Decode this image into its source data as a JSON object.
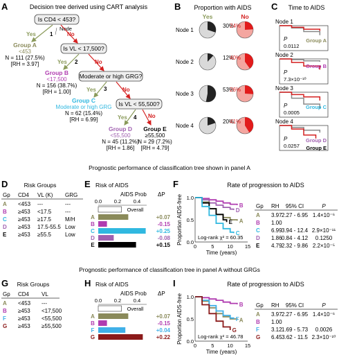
{
  "colors": {
    "groupA": "#8a8a5a",
    "groupB": "#b03cb0",
    "groupC": "#30b8e0",
    "groupD": "#a060b0",
    "groupE": "#000000",
    "groupF": "#40b0e8",
    "groupG": "#8b1a1a",
    "yes": "#8a9a5a",
    "no": "#d42020",
    "pieYes": "#222222",
    "pieYesBg": "#d9d9d9",
    "pieNo": "#e21b1b",
    "pieNoBg": "#f4a6a0"
  },
  "panels": {
    "A": "A",
    "B": "B",
    "C": "C",
    "D": "D",
    "E": "E",
    "F": "F",
    "G": "G",
    "H": "H",
    "I": "I"
  },
  "panelA": {
    "title": "Decision tree derived using CART analysis",
    "q1": "Is CD4 < 453?",
    "node_label": "Node",
    "q2": "Is VL < 17,500?",
    "q3": "Moderate or high GRG?",
    "q4": "Is VL < 55,500?",
    "n1": "1",
    "n2": "2",
    "n3": "3",
    "n4": "4",
    "yes": "Yes",
    "no": "No",
    "groupA": {
      "name": "Group A",
      "crit": "<453",
      "n": "N = 111 (27.5%)",
      "rh": "[RH = 3.97]"
    },
    "groupB": {
      "name": "Group B",
      "crit": "<17,500",
      "n": "N = 156 (38.7%)",
      "rh": "[RH = 1.00]"
    },
    "groupC": {
      "name": "Group C",
      "crit": "Moderate or high GRG",
      "n": "N = 62 (15.4%)",
      "rh": "[RH = 6.99]"
    },
    "groupD": {
      "name": "Group D",
      "crit": "<55,500",
      "n": "N = 45 (11.2%)",
      "rh": "[RH = 1.86]"
    },
    "groupE": {
      "name": "Group E",
      "crit": "≥55,500",
      "n": "N = 29 (7.2%)",
      "rh": "[RH = 4.79]"
    }
  },
  "panelB": {
    "title": "Proportion with AIDS",
    "yes": "Yes",
    "no": "No",
    "rows": [
      {
        "label": "Node 1",
        "yes": "30%",
        "no": "24%",
        "yes_frac": 0.3,
        "no_frac": 0.24
      },
      {
        "label": "Node 2",
        "yes": "12%",
        "no": "40%",
        "yes_frac": 0.12,
        "no_frac": 0.4
      },
      {
        "label": "Node 3",
        "yes": "53%",
        "no": "26%",
        "yes_frac": 0.53,
        "no_frac": 0.26
      },
      {
        "label": "Node 4",
        "yes": "20%",
        "no": "41%",
        "yes_frac": 0.2,
        "no_frac": 0.41
      }
    ]
  },
  "panelC": {
    "title": "Time to AIDS",
    "p_label": "P",
    "rows": [
      {
        "label": "Node 1",
        "p": "0.0112",
        "group_gray": "Group A",
        "group_red": ""
      },
      {
        "label": "Node 2",
        "p": "7.3×10⁻¹⁰",
        "group_gray": "",
        "group_red": "Group B"
      },
      {
        "label": "Node 3",
        "p": "0.0005",
        "group_gray": "Group C",
        "group_red": ""
      },
      {
        "label": "Node 4",
        "p": "0.0257",
        "group_gray": "Group D",
        "group_red": "Group E"
      }
    ]
  },
  "section1_title": "Prognostic performance of classification tree shown in panel A",
  "section2_title": "Prognostic performance of classification tree in panel A without GRGs",
  "panelD": {
    "title": "Risk Groups",
    "headers": [
      "Gp",
      "CD4",
      "VL (K)",
      "GRG"
    ],
    "rows": [
      [
        "A",
        "<453",
        "---",
        "---"
      ],
      [
        "B",
        "≥453",
        "<17.5",
        "---"
      ],
      [
        "C",
        "≥453",
        "≥17.5",
        "M/H"
      ],
      [
        "D",
        "≥453",
        "17.5-55.5",
        "Low"
      ],
      [
        "E",
        "≥453",
        "≥55.5",
        "Low"
      ]
    ]
  },
  "panelE": {
    "title": "Risk of AIDS",
    "sub": "AIDS Prob",
    "dp": "ΔP",
    "ticks": [
      "0.0",
      "0.2",
      "0.4"
    ],
    "overall_label": "Overall",
    "overall": 0.24,
    "bars": [
      {
        "g": "A",
        "v": 0.31,
        "dp": "+0.07"
      },
      {
        "g": "B",
        "v": 0.09,
        "dp": "-0.15"
      },
      {
        "g": "C",
        "v": 0.49,
        "dp": "+0.25"
      },
      {
        "g": "D",
        "v": 0.16,
        "dp": "-0.08"
      },
      {
        "g": "E",
        "v": 0.39,
        "dp": "+0.15"
      }
    ]
  },
  "panelF": {
    "title": "Rate of progression to AIDS",
    "ylabel": "Proportion AIDS-free",
    "xlabel": "Time (years)",
    "yticks": [
      "0.0",
      "0.5",
      "1.0"
    ],
    "xticks": [
      "0",
      "5",
      "10",
      "15"
    ],
    "logrank": "Log-rank χ² = 60.35",
    "curve_labels": [
      "B",
      "D",
      "A",
      "E",
      "C"
    ],
    "headers": [
      "Gp",
      "RH",
      "95% CI",
      "P"
    ],
    "rows": [
      [
        "A",
        "3.97",
        "2.27 - 6.95",
        "1.4×10⁻⁶"
      ],
      [
        "B",
        "1.00",
        "",
        ""
      ],
      [
        "C",
        "6.99",
        "3.94 - 12.4",
        "2.9×10⁻¹¹"
      ],
      [
        "D",
        "1.86",
        "0.84 - 4.12",
        "0.1250"
      ],
      [
        "E",
        "4.79",
        "2.32 - 9.86",
        "2.2×10⁻⁵"
      ]
    ],
    "curves": {
      "B": [
        [
          0,
          1.0
        ],
        [
          2,
          0.98
        ],
        [
          4,
          0.95
        ],
        [
          6,
          0.92
        ],
        [
          8,
          0.88
        ],
        [
          10,
          0.85
        ],
        [
          12,
          0.83
        ]
      ],
      "D": [
        [
          0,
          1.0
        ],
        [
          2,
          0.95
        ],
        [
          4,
          0.88
        ],
        [
          6,
          0.83
        ],
        [
          8,
          0.78
        ],
        [
          10,
          0.74
        ],
        [
          11,
          0.72
        ]
      ],
      "A": [
        [
          0,
          1.0
        ],
        [
          2,
          0.9
        ],
        [
          4,
          0.75
        ],
        [
          6,
          0.62
        ],
        [
          8,
          0.55
        ],
        [
          10,
          0.5
        ],
        [
          12,
          0.48
        ]
      ],
      "E": [
        [
          0,
          1.0
        ],
        [
          2,
          0.88
        ],
        [
          4,
          0.75
        ],
        [
          6,
          0.62
        ],
        [
          8,
          0.5
        ],
        [
          9,
          0.45
        ]
      ],
      "C": [
        [
          0,
          1.0
        ],
        [
          2,
          0.8
        ],
        [
          4,
          0.6
        ],
        [
          6,
          0.42
        ],
        [
          8,
          0.3
        ],
        [
          10,
          0.22
        ],
        [
          11,
          0.2
        ]
      ]
    }
  },
  "panelG": {
    "title": "Risk Groups",
    "headers": [
      "Gp",
      "CD4",
      "VL"
    ],
    "rows": [
      [
        "A",
        "<453",
        "---"
      ],
      [
        "B",
        "≥453",
        "<17,500"
      ],
      [
        "F",
        "≥453",
        "<55,500"
      ],
      [
        "G",
        "≥453",
        "≥55,500"
      ]
    ]
  },
  "panelH": {
    "title": "Risk of AIDS",
    "sub": "AIDS Prob",
    "dp": "ΔP",
    "ticks": [
      "0.0",
      "0.2",
      "0.4"
    ],
    "overall_label": "Overall",
    "overall": 0.24,
    "bars": [
      {
        "g": "A",
        "v": 0.31,
        "dp": "+0.07"
      },
      {
        "g": "B",
        "v": 0.09,
        "dp": "-0.15"
      },
      {
        "g": "F",
        "v": 0.28,
        "dp": "+0.04"
      },
      {
        "g": "G",
        "v": 0.46,
        "dp": "+0.22"
      }
    ]
  },
  "panelI": {
    "title": "Rate of progression to AIDS",
    "ylabel": "Proportion AIDS-free",
    "xlabel": "Time (years)",
    "yticks": [
      "0.0",
      "0.5",
      "1.0"
    ],
    "xticks": [
      "0",
      "5",
      "10",
      "15"
    ],
    "logrank": "Log-rank χ² = 46.78",
    "curve_labels": [
      "B",
      "A",
      "F",
      "G"
    ],
    "headers": [
      "Gp",
      "RH",
      "95% CI",
      "P"
    ],
    "rows": [
      [
        "A",
        "3.97",
        "2.27 - 6.95",
        "1.4×10⁻⁶"
      ],
      [
        "B",
        "1.00",
        "",
        ""
      ],
      [
        "F",
        "3.12",
        "1.69 - 5.73",
        "0.0026"
      ],
      [
        "G",
        "6.45",
        "3.62 - 11.5",
        "2.3×10⁻¹⁰"
      ]
    ],
    "curves": {
      "B": [
        [
          0,
          1.0
        ],
        [
          2,
          0.98
        ],
        [
          4,
          0.95
        ],
        [
          6,
          0.92
        ],
        [
          8,
          0.88
        ],
        [
          10,
          0.85
        ],
        [
          12,
          0.83
        ]
      ],
      "A": [
        [
          0,
          1.0
        ],
        [
          2,
          0.9
        ],
        [
          4,
          0.75
        ],
        [
          6,
          0.62
        ],
        [
          8,
          0.55
        ],
        [
          10,
          0.5
        ],
        [
          12,
          0.48
        ]
      ],
      "F": [
        [
          0,
          1.0
        ],
        [
          2,
          0.92
        ],
        [
          4,
          0.8
        ],
        [
          6,
          0.68
        ],
        [
          8,
          0.58
        ],
        [
          10,
          0.52
        ],
        [
          11,
          0.5
        ]
      ],
      "G": [
        [
          0,
          1.0
        ],
        [
          2,
          0.82
        ],
        [
          4,
          0.62
        ],
        [
          6,
          0.45
        ],
        [
          8,
          0.32
        ],
        [
          10,
          0.25
        ]
      ]
    }
  }
}
